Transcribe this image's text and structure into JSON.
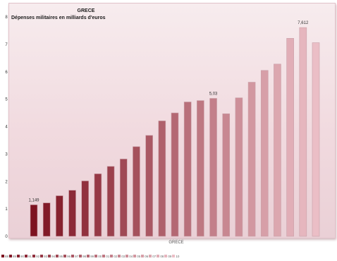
{
  "chart_data": {
    "type": "bar",
    "title": "GRECE",
    "subtitle": "Dépenses militaires en milliards d'euros",
    "xlabel": "GRECE",
    "ylabel": "",
    "ylim": [
      0,
      8
    ],
    "yticks": [
      "0",
      "1",
      "2",
      "3",
      "4",
      "5",
      "6",
      "7",
      "8"
    ],
    "grid": false,
    "legend_position": "bottom",
    "categories": [
      "88",
      "89",
      "90",
      "91",
      "92",
      "93",
      "94",
      "95",
      "96",
      "97",
      "98",
      "99",
      "00",
      "01",
      "02",
      "03",
      "04",
      "05",
      "06",
      "07",
      "08",
      "09",
      "10"
    ],
    "legend_labels": [
      "88",
      "89",
      "90",
      "91",
      "92",
      "93",
      "94",
      "95",
      "96",
      "97",
      "98",
      "99",
      "00",
      "01",
      "02",
      "03",
      "04",
      "05",
      "06",
      "07",
      "08",
      "09",
      "10"
    ],
    "values": [
      1.149,
      1.22,
      1.48,
      1.68,
      2.02,
      2.28,
      2.55,
      2.82,
      3.27,
      3.68,
      4.21,
      4.5,
      4.9,
      4.95,
      5.03,
      4.47,
      5.05,
      5.62,
      6.05,
      6.28,
      7.22,
      7.612,
      7.06
    ],
    "data_labels": [
      {
        "index": 0,
        "text": "1,149"
      },
      {
        "index": 14,
        "text": "5,03"
      },
      {
        "index": 21,
        "text": "7,612"
      }
    ],
    "colors": {
      "dark": "#7d1220",
      "light": "#ebbec6",
      "border": "#c9a0a8",
      "panel": "#f3e2e5"
    }
  }
}
